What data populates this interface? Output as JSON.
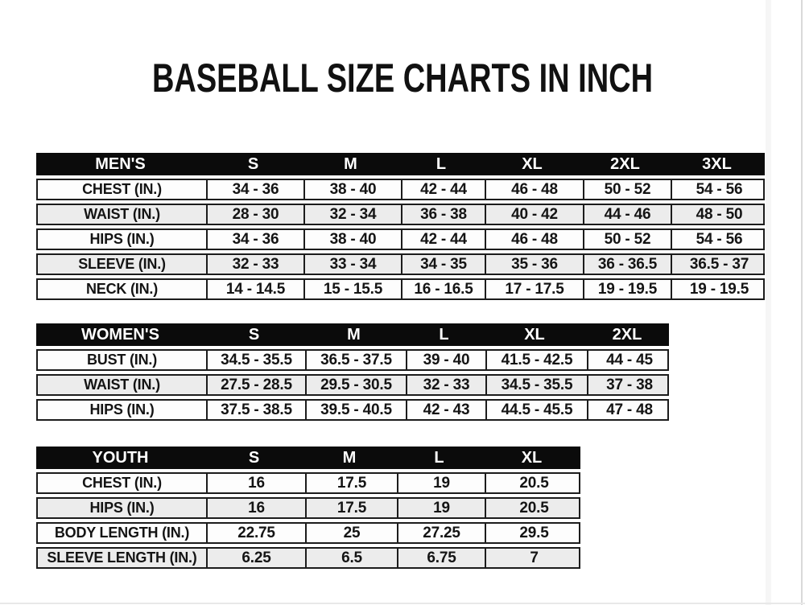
{
  "title": "BASEBALL SIZE CHARTS IN INCH",
  "colors": {
    "header_bg": "#0b0b0b",
    "header_text": "#ffffff",
    "row_bg": "#fdfdfd",
    "row_alt_bg": "#ececec",
    "border": "#1c1c1c",
    "title_text": "#111111"
  },
  "tables": {
    "mens": {
      "header": [
        "MEN'S",
        "S",
        "M",
        "L",
        "XL",
        "2XL",
        "3XL"
      ],
      "rows": [
        {
          "label": "CHEST (IN.)",
          "values": [
            "34 - 36",
            "38 - 40",
            "42 - 44",
            "46 - 48",
            "50 - 52",
            "54 - 56"
          ]
        },
        {
          "label": "WAIST (IN.)",
          "values": [
            "28 - 30",
            "32 - 34",
            "36 - 38",
            "40 - 42",
            "44 - 46",
            "48 - 50"
          ]
        },
        {
          "label": "HIPS (IN.)",
          "values": [
            "34 - 36",
            "38 - 40",
            "42 - 44",
            "46 - 48",
            "50 - 52",
            "54 - 56"
          ]
        },
        {
          "label": "SLEEVE (IN.)",
          "values": [
            "32 - 33",
            "33 - 34",
            "34 - 35",
            "35 - 36",
            "36 - 36.5",
            "36.5 - 37"
          ]
        },
        {
          "label": "NECK (IN.)",
          "values": [
            "14 - 14.5",
            "15 - 15.5",
            "16 - 16.5",
            "17 - 17.5",
            "19 - 19.5",
            "19 - 19.5"
          ]
        }
      ]
    },
    "womens": {
      "header": [
        "WOMEN'S",
        "S",
        "M",
        "L",
        "XL",
        "2XL"
      ],
      "rows": [
        {
          "label": "BUST (IN.)",
          "values": [
            "34.5 - 35.5",
            "36.5 - 37.5",
            "39 - 40",
            "41.5 - 42.5",
            "44 - 45"
          ]
        },
        {
          "label": "WAIST (IN.)",
          "values": [
            "27.5 - 28.5",
            "29.5 - 30.5",
            "32 - 33",
            "34.5 - 35.5",
            "37 - 38"
          ]
        },
        {
          "label": "HIPS (IN.)",
          "values": [
            "37.5 - 38.5",
            "39.5 - 40.5",
            "42 - 43",
            "44.5 - 45.5",
            "47 - 48"
          ]
        }
      ]
    },
    "youth": {
      "header": [
        "YOUTH",
        "S",
        "M",
        "L",
        "XL"
      ],
      "rows": [
        {
          "label": "CHEST (IN.)",
          "values": [
            "16",
            "17.5",
            "19",
            "20.5"
          ]
        },
        {
          "label": "HIPS (IN.)",
          "values": [
            "16",
            "17.5",
            "19",
            "20.5"
          ]
        },
        {
          "label": "BODY LENGTH (IN.)",
          "values": [
            "22.75",
            "25",
            "27.25",
            "29.5"
          ]
        },
        {
          "label": "SLEEVE LENGTH (IN.)",
          "values": [
            "6.25",
            "6.5",
            "6.75",
            "7"
          ]
        }
      ]
    }
  }
}
